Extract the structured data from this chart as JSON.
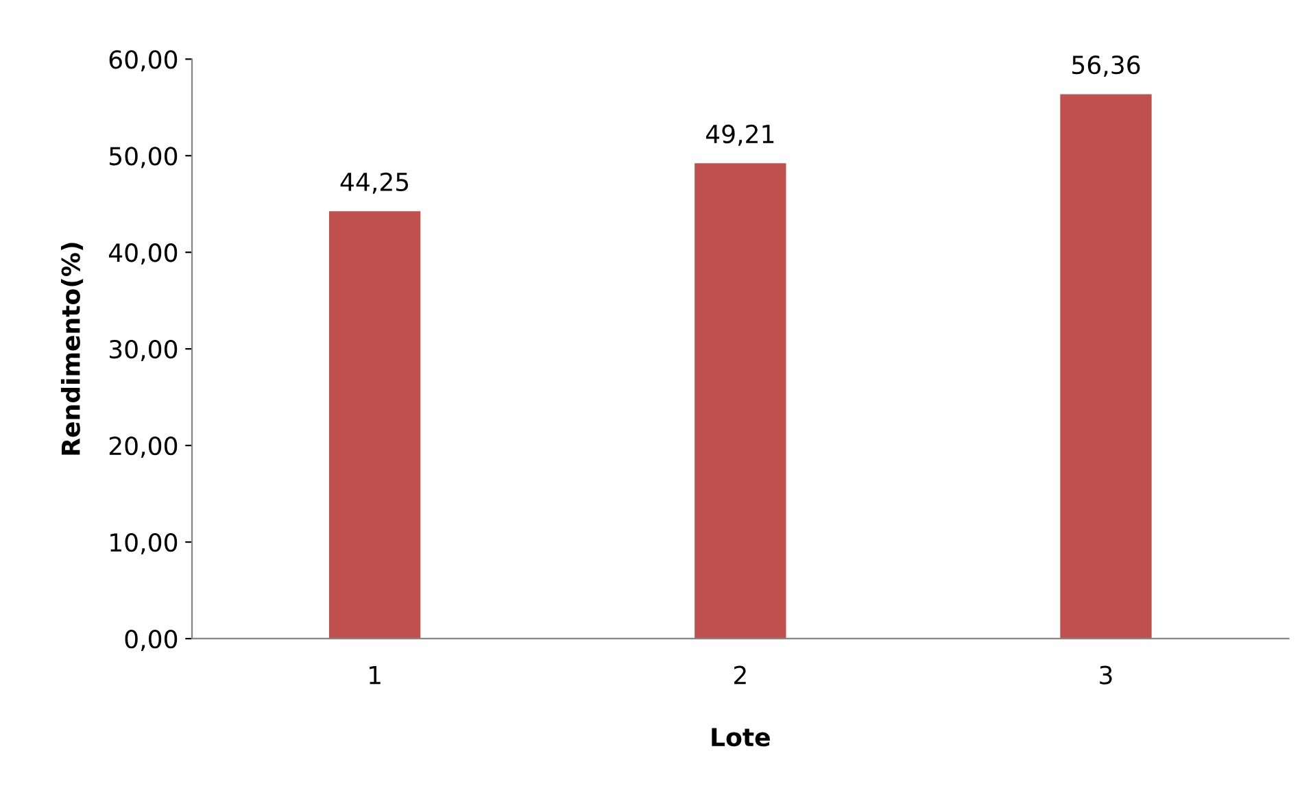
{
  "chart_data": {
    "type": "bar",
    "xlabel": "Lote",
    "ylabel": "Rendimento(%)",
    "categories": [
      "1",
      "2",
      "3"
    ],
    "values": [
      44.25,
      49.21,
      56.36
    ],
    "value_labels": [
      "44,25",
      "49,21",
      "56,36"
    ],
    "color": "#c0504d",
    "ylim": [
      0,
      60
    ],
    "yticks": [
      {
        "value": 0,
        "label": "0,00"
      },
      {
        "value": 10,
        "label": "10,00"
      },
      {
        "value": 20,
        "label": "20,00"
      },
      {
        "value": 30,
        "label": "30,00"
      },
      {
        "value": 40,
        "label": "40,00"
      },
      {
        "value": 50,
        "label": "50,00"
      },
      {
        "value": 60,
        "label": "60,00"
      }
    ],
    "grid": false,
    "legend": false
  }
}
